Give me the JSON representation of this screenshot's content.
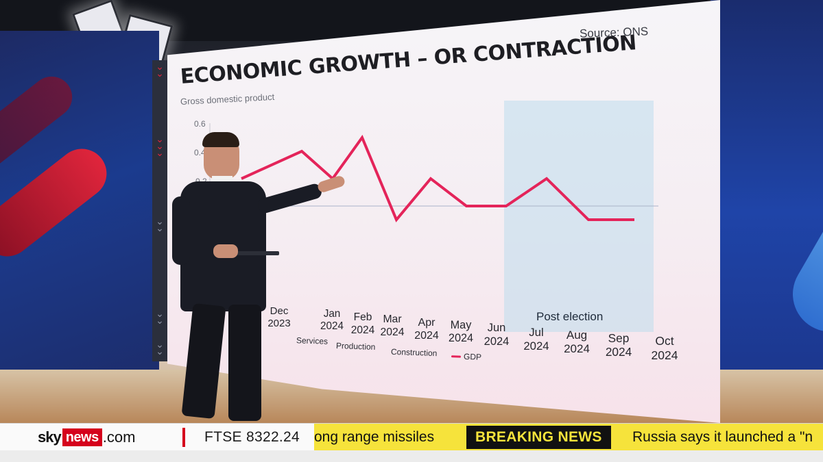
{
  "chart": {
    "title": "ECONOMIC GROWTH – OR CONTRACTION",
    "subtitle": "Gross domestic product",
    "source": "Source: ONS",
    "annotation": "Post election",
    "colors": {
      "gdp_line": "#e4245a",
      "post_election_band": "#bedcec",
      "zero_line": "#a9b3c9"
    }
  },
  "chart_data": {
    "type": "line",
    "title": "ECONOMIC GROWTH – OR CONTRACTION",
    "subtitle": "Gross domestic product",
    "ylabel": "",
    "ylim": [
      -0.6,
      0.6
    ],
    "y_ticks_visible": [
      "0.6",
      "0.4",
      "0.2"
    ],
    "categories": [
      "Dec 2023",
      "Jan 2024",
      "Feb 2024",
      "Mar 2024",
      "Apr 2024",
      "May 2024",
      "Jun 2024",
      "Jul 2024",
      "Aug 2024",
      "Sep 2024",
      "Oct 2024"
    ],
    "series": [
      {
        "name": "GDP",
        "color": "#e4245a",
        "values": [
          0.2,
          0.4,
          0.2,
          0.5,
          -0.1,
          0.2,
          0.0,
          0.0,
          0.2,
          -0.1,
          -0.1
        ]
      }
    ],
    "legend": [
      "Services",
      "Production",
      "Construction",
      "GDP"
    ],
    "shaded_region": {
      "label": "Post election",
      "from": "Jul 2024",
      "to": "Oct 2024"
    },
    "grid": false
  },
  "legend": {
    "services": "Services",
    "production": "Production",
    "construction": "Construction",
    "gdp": "GDP"
  },
  "ticker": {
    "logo_sky": "sky",
    "logo_news": "news",
    "logo_com": ".com",
    "market": "FTSE  8322.24",
    "scroll_prev": "ong range missiles",
    "breaking_label": "BREAKING NEWS",
    "scroll_next": "Russia says it launched a \"n"
  }
}
